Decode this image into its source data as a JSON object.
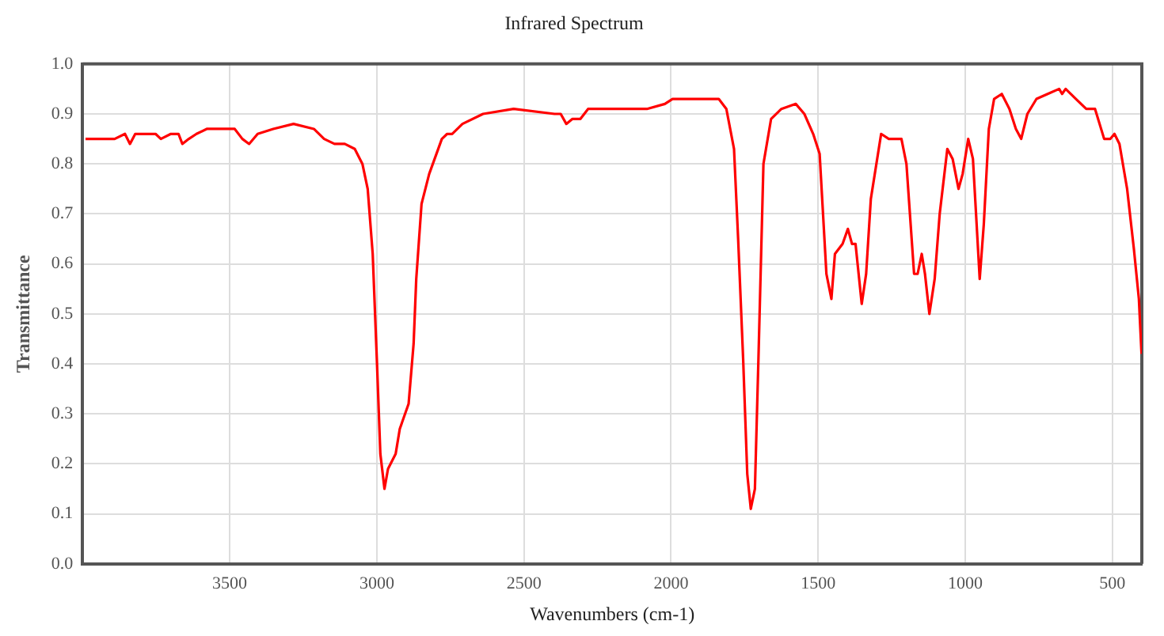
{
  "chart_data": {
    "type": "line",
    "title": "Infrared Spectrum",
    "xlabel": "Wavenumbers (cm-1)",
    "ylabel": "Transmittance",
    "xlim": [
      4000,
      400
    ],
    "xticks": [
      3500,
      3000,
      2500,
      2000,
      1500,
      1000,
      500
    ],
    "ylim": [
      0,
      1
    ],
    "yticks": [
      {
        "value": 0,
        "label": "0.0"
      },
      {
        "value": 0.1,
        "label": "0.1"
      },
      {
        "value": 0.2,
        "label": "0.2"
      },
      {
        "value": 0.3,
        "label": "0.3"
      },
      {
        "value": 0.4,
        "label": "0.4"
      },
      {
        "value": 0.5,
        "label": "0.5"
      },
      {
        "value": 0.6,
        "label": "0.6"
      },
      {
        "value": 0.7,
        "label": "0.7"
      },
      {
        "value": 0.8,
        "label": "0.8"
      },
      {
        "value": 0.9,
        "label": "0.9"
      },
      {
        "value": 1,
        "label": "1.0"
      }
    ],
    "grid": true,
    "legend": false,
    "series": [
      {
        "color": "#ff0000",
        "x": [
          3990,
          3925,
          3891,
          3856,
          3839,
          3821,
          3752,
          3734,
          3700,
          3674,
          3661,
          3639,
          3613,
          3578,
          3543,
          3483,
          3457,
          3434,
          3405,
          3352,
          3283,
          3214,
          3179,
          3144,
          3109,
          3075,
          3049,
          3031,
          3014,
          3000,
          2988,
          2974,
          2962,
          2936,
          2922,
          2892,
          2875,
          2866,
          2848,
          2822,
          2779,
          2761,
          2744,
          2709,
          2639,
          2535,
          2396,
          2375,
          2356,
          2335,
          2308,
          2282,
          2186,
          2082,
          2021,
          1995,
          1943,
          1899,
          1838,
          1812,
          1786,
          1772,
          1755,
          1741,
          1729,
          1715,
          1703,
          1686,
          1660,
          1625,
          1576,
          1547,
          1517,
          1495,
          1472,
          1455,
          1443,
          1417,
          1399,
          1385,
          1373,
          1352,
          1337,
          1321,
          1286,
          1260,
          1243,
          1217,
          1200,
          1174,
          1162,
          1148,
          1137,
          1122,
          1104,
          1087,
          1061,
          1043,
          1023,
          1009,
          990,
          974,
          951,
          937,
          920,
          902,
          876,
          850,
          828,
          810,
          789,
          758,
          720,
          681,
          671,
          659,
          624,
          589,
          559,
          528,
          507,
          493,
          476,
          450,
          427,
          410,
          401
        ],
        "values": [
          0.85,
          0.85,
          0.85,
          0.86,
          0.84,
          0.86,
          0.86,
          0.85,
          0.86,
          0.86,
          0.84,
          0.85,
          0.86,
          0.87,
          0.87,
          0.87,
          0.85,
          0.84,
          0.86,
          0.87,
          0.88,
          0.87,
          0.85,
          0.84,
          0.84,
          0.83,
          0.8,
          0.75,
          0.62,
          0.41,
          0.22,
          0.15,
          0.19,
          0.22,
          0.27,
          0.32,
          0.44,
          0.57,
          0.72,
          0.78,
          0.85,
          0.86,
          0.86,
          0.88,
          0.9,
          0.91,
          0.9,
          0.9,
          0.88,
          0.89,
          0.89,
          0.91,
          0.91,
          0.91,
          0.92,
          0.93,
          0.93,
          0.93,
          0.93,
          0.91,
          0.83,
          0.65,
          0.41,
          0.18,
          0.11,
          0.15,
          0.41,
          0.8,
          0.89,
          0.91,
          0.92,
          0.9,
          0.86,
          0.82,
          0.58,
          0.53,
          0.62,
          0.64,
          0.67,
          0.64,
          0.64,
          0.52,
          0.58,
          0.73,
          0.86,
          0.85,
          0.85,
          0.85,
          0.8,
          0.58,
          0.58,
          0.62,
          0.58,
          0.5,
          0.57,
          0.7,
          0.83,
          0.81,
          0.75,
          0.78,
          0.85,
          0.81,
          0.57,
          0.68,
          0.87,
          0.93,
          0.94,
          0.91,
          0.87,
          0.85,
          0.9,
          0.93,
          0.94,
          0.95,
          0.94,
          0.95,
          0.93,
          0.91,
          0.91,
          0.85,
          0.85,
          0.86,
          0.84,
          0.75,
          0.63,
          0.53,
          0.42
        ]
      }
    ]
  }
}
